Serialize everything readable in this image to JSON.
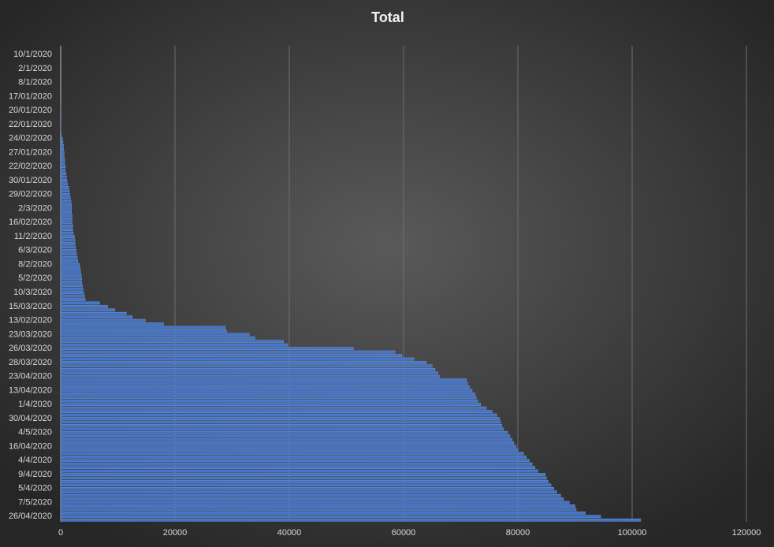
{
  "chart_data": {
    "type": "barh",
    "title": "Total",
    "categories": [
      null,
      null,
      "10/1/2020",
      null,
      null,
      null,
      "2/1/2020",
      null,
      null,
      null,
      "8/1/2020",
      null,
      null,
      null,
      "17/01/2020",
      null,
      null,
      null,
      "20/01/2020",
      null,
      null,
      null,
      "22/01/2020",
      null,
      null,
      null,
      "24/02/2020",
      null,
      null,
      null,
      "27/01/2020",
      null,
      null,
      null,
      "22/02/2020",
      null,
      null,
      null,
      "30/01/2020",
      null,
      null,
      null,
      "29/02/2020",
      null,
      null,
      null,
      "2/3/2020",
      null,
      null,
      null,
      "16/02/2020",
      null,
      null,
      null,
      "11/2/2020",
      null,
      null,
      null,
      "6/3/2020",
      null,
      null,
      null,
      "8/2/2020",
      null,
      null,
      null,
      "5/2/2020",
      null,
      null,
      null,
      "10/3/2020",
      null,
      null,
      null,
      "15/03/2020",
      null,
      null,
      null,
      "13/02/2020",
      null,
      null,
      null,
      "23/03/2020",
      null,
      null,
      null,
      "26/03/2020",
      null,
      null,
      null,
      "28/03/2020",
      null,
      null,
      null,
      "23/04/2020",
      null,
      null,
      null,
      "13/04/2020",
      null,
      null,
      null,
      "1/4/2020",
      null,
      null,
      null,
      "30/04/2020",
      null,
      null,
      null,
      "4/5/2020",
      null,
      null,
      null,
      "16/04/2020",
      null,
      null,
      null,
      "4/4/2020",
      null,
      null,
      null,
      "9/4/2020",
      null,
      null,
      null,
      "5/4/2020",
      null,
      null,
      null,
      "7/5/2020",
      null,
      null,
      null,
      "26/04/2020",
      null
    ],
    "values": [
      0,
      0,
      0,
      0,
      0,
      0,
      0,
      0,
      0,
      0,
      0,
      0,
      0,
      0,
      0,
      0,
      1,
      1,
      2,
      2,
      5,
      5,
      10,
      20,
      50,
      100,
      300,
      400,
      500,
      500,
      600,
      600,
      700,
      700,
      800,
      800,
      900,
      1000,
      1100,
      1200,
      1400,
      1500,
      1600,
      1700,
      1800,
      1900,
      1900,
      1900,
      2000,
      2000,
      2000,
      2100,
      2100,
      2200,
      2400,
      2500,
      2500,
      2600,
      2700,
      2800,
      2900,
      3000,
      3300,
      3400,
      3500,
      3600,
      3700,
      3700,
      3800,
      3900,
      4000,
      4200,
      4300,
      6800,
      8200,
      9500,
      11500,
      12500,
      14800,
      18000,
      28800,
      29000,
      33000,
      34000,
      39000,
      39700,
      51200,
      58500,
      59700,
      61800,
      64000,
      65000,
      65500,
      66000,
      66300,
      71000,
      71200,
      71500,
      72000,
      72500,
      72700,
      73000,
      73500,
      74500,
      75500,
      76300,
      76800,
      77000,
      77200,
      77500,
      78200,
      78600,
      79000,
      79300,
      79700,
      80000,
      81000,
      81500,
      82000,
      82500,
      83000,
      83500,
      84800,
      85000,
      85300,
      85800,
      86300,
      86800,
      87500,
      88000,
      89000,
      90000,
      90200,
      91800,
      94500,
      101500
    ],
    "color": "#4472c4",
    "xlim": [
      0,
      120000
    ],
    "xticks": [
      0,
      20000,
      40000,
      60000,
      80000,
      100000,
      120000
    ],
    "grid": true
  }
}
